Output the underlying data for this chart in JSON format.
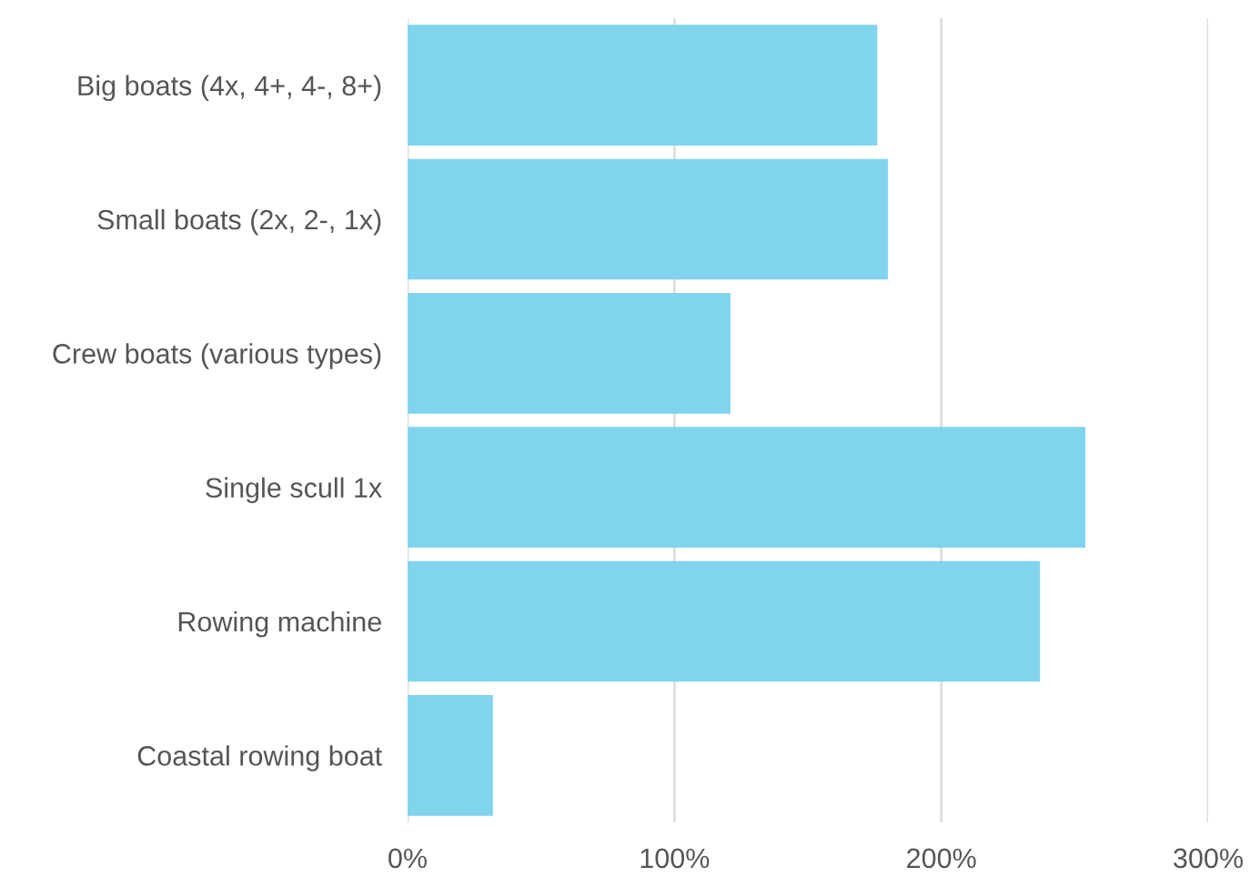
{
  "chart_data": {
    "type": "bar",
    "orientation": "horizontal",
    "categories": [
      "Big boats (4x, 4+, 4-, 8+)",
      "Small boats (2x, 2-, 1x)",
      "Crew boats (various types)",
      "Single scull 1x",
      "Rowing machine",
      "Coastal rowing boat"
    ],
    "values": [
      176,
      180,
      121,
      254,
      237,
      32
    ],
    "color": "#81d4ed",
    "xlim": [
      0,
      300
    ],
    "xticks": [
      {
        "value": 0,
        "label": "0%"
      },
      {
        "value": 100,
        "label": "100%"
      },
      {
        "value": 200,
        "label": "200%"
      },
      {
        "value": 300,
        "label": "300%"
      }
    ],
    "grid": "x"
  }
}
